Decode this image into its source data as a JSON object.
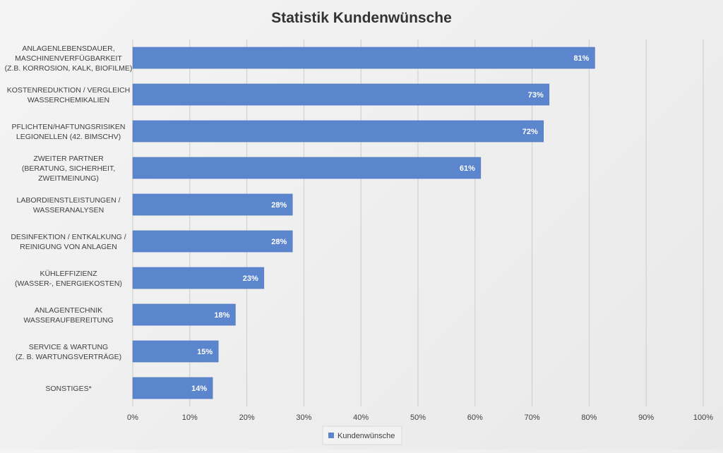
{
  "chart_data": {
    "type": "bar",
    "orientation": "horizontal",
    "title": "Statistik Kundenwünsche",
    "categories": [
      [
        "ANLAGENLEBENSDAUER,",
        "MASCHINENVERFÜGBARKEIT",
        "(Z.B. KORROSION, KALK, BIOFILME)"
      ],
      [
        "KOSTENREDUKTION / VERGLEICH",
        "WASSERCHEMIKALIEN"
      ],
      [
        "PFLICHTEN/HAFTUNGSRISIKEN",
        "LEGIONELLEN (42. BIMSCHV)"
      ],
      [
        "ZWEITER PARTNER",
        "(BERATUNG, SICHERHEIT,",
        "ZWEITMEINUNG)"
      ],
      [
        "LABORDIENSTLEISTUNGEN /",
        "WASSERANALYSEN"
      ],
      [
        "DESINFEKTION / ENTKALKUNG /",
        "REINIGUNG VON ANLAGEN"
      ],
      [
        "KÜHLEFFIZIENZ",
        "(WASSER-, ENERGIEKOSTEN)"
      ],
      [
        "ANLAGENTECHNIK",
        "WASSERAUFBEREITUNG"
      ],
      [
        "SERVICE & WARTUNG",
        "(Z. B. WARTUNGSVERTRÄGE)"
      ],
      [
        "SONSTIGES*"
      ]
    ],
    "series": [
      {
        "name": "Kundenwünsche",
        "values": [
          81,
          73,
          72,
          61,
          28,
          28,
          23,
          18,
          15,
          14
        ]
      }
    ],
    "data_labels": [
      "81%",
      "73%",
      "72%",
      "61%",
      "28%",
      "28%",
      "23%",
      "18%",
      "15%",
      "14%"
    ],
    "xlim": [
      0,
      100
    ],
    "x_ticks": [
      "0%",
      "10%",
      "20%",
      "30%",
      "40%",
      "50%",
      "60%",
      "70%",
      "80%",
      "90%",
      "100%"
    ],
    "grid": true,
    "legend_position": "bottom",
    "colors": {
      "bar": "#5b85cc",
      "bar_edge": "#4a73b8",
      "grid": "#cccccc",
      "text": "#404040",
      "title": "#333333"
    }
  }
}
